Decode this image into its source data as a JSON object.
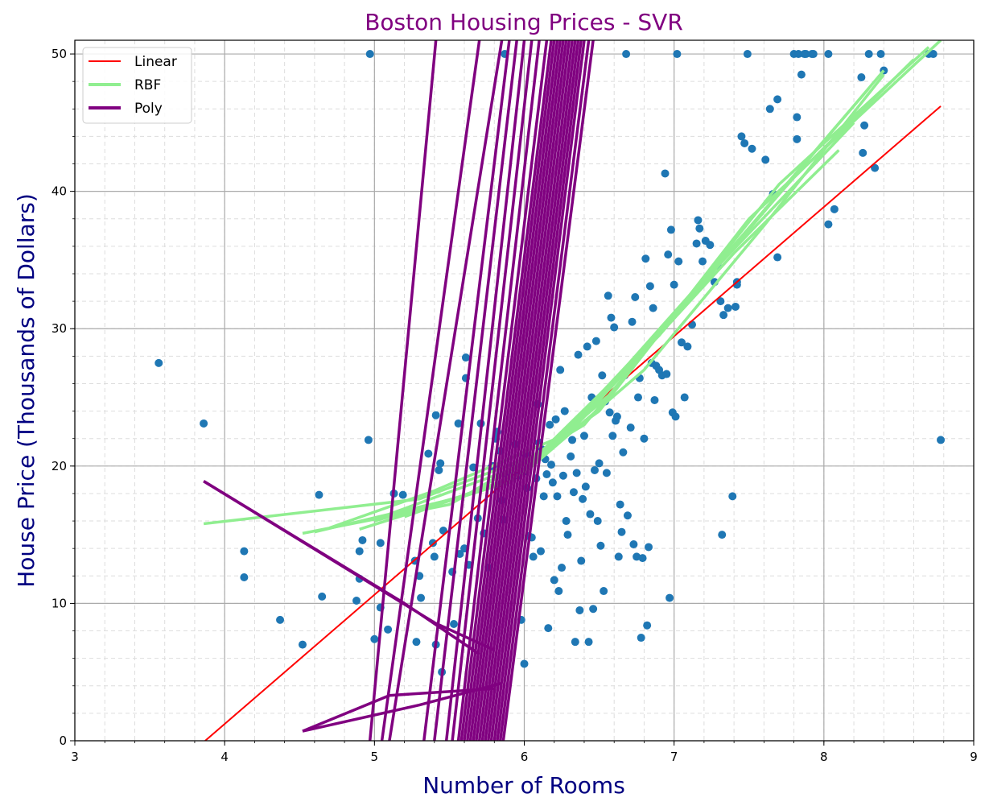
{
  "chart_data": {
    "type": "scatter",
    "title": "Boston Housing Prices - SVR",
    "xlabel": "Number of Rooms",
    "ylabel": "House Price (Thousands of Dollars)",
    "xlim": [
      3,
      9
    ],
    "ylim": [
      0,
      51
    ],
    "xticks": [
      3,
      4,
      5,
      6,
      7,
      8,
      9
    ],
    "yticks": [
      0,
      10,
      20,
      30,
      40,
      50
    ],
    "grid": true,
    "legend_position": "top-left",
    "colors": {
      "points": "#1f77b4",
      "linear": "#ff0000",
      "rbf": "#90ee90",
      "poly": "#800080",
      "title": "#800080",
      "axis_label": "#000080"
    },
    "legend": [
      {
        "label": "Linear",
        "color": "#ff0000"
      },
      {
        "label": "RBF",
        "color": "#90ee90"
      },
      {
        "label": "Poly",
        "color": "#800080"
      }
    ],
    "points": [
      [
        3.56,
        27.5
      ],
      [
        3.86,
        23.1
      ],
      [
        4.13,
        13.8
      ],
      [
        4.13,
        11.9
      ],
      [
        4.37,
        8.8
      ],
      [
        4.52,
        7.0
      ],
      [
        4.63,
        17.9
      ],
      [
        4.65,
        10.5
      ],
      [
        4.88,
        10.2
      ],
      [
        4.9,
        11.8
      ],
      [
        4.9,
        13.8
      ],
      [
        4.92,
        14.6
      ],
      [
        4.96,
        21.9
      ],
      [
        4.97,
        50.0
      ],
      [
        5.0,
        7.4
      ],
      [
        5.04,
        14.4
      ],
      [
        5.04,
        9.7
      ],
      [
        5.09,
        8.1
      ],
      [
        5.13,
        18.0
      ],
      [
        5.19,
        17.9
      ],
      [
        5.27,
        13.1
      ],
      [
        5.28,
        7.2
      ],
      [
        5.3,
        12.0
      ],
      [
        5.31,
        10.4
      ],
      [
        5.36,
        20.9
      ],
      [
        5.39,
        14.4
      ],
      [
        5.4,
        13.4
      ],
      [
        5.41,
        23.7
      ],
      [
        5.41,
        7.0
      ],
      [
        5.43,
        19.7
      ],
      [
        5.44,
        20.2
      ],
      [
        5.45,
        5.0
      ],
      [
        5.46,
        15.3
      ],
      [
        5.52,
        12.3
      ],
      [
        5.53,
        8.5
      ],
      [
        5.56,
        23.1
      ],
      [
        5.57,
        13.6
      ],
      [
        5.6,
        14.0
      ],
      [
        5.61,
        27.9
      ],
      [
        5.61,
        26.4
      ],
      [
        5.63,
        12.8
      ],
      [
        5.66,
        19.9
      ],
      [
        5.69,
        16.2
      ],
      [
        5.71,
        23.1
      ],
      [
        5.73,
        15.1
      ],
      [
        5.76,
        12.6
      ],
      [
        5.78,
        19.9
      ],
      [
        5.79,
        20.0
      ],
      [
        5.81,
        22.0
      ],
      [
        5.82,
        22.5
      ],
      [
        5.84,
        21.1
      ],
      [
        5.85,
        17.5
      ],
      [
        5.86,
        16.1
      ],
      [
        5.87,
        50.0
      ],
      [
        5.88,
        18.9
      ],
      [
        5.89,
        19.4
      ],
      [
        5.93,
        20.0
      ],
      [
        5.94,
        21.6
      ],
      [
        5.96,
        19.3
      ],
      [
        5.98,
        8.8
      ],
      [
        6.0,
        5.6
      ],
      [
        6.0,
        19.6
      ],
      [
        6.01,
        20.8
      ],
      [
        6.02,
        18.4
      ],
      [
        6.03,
        14.9
      ],
      [
        6.05,
        14.8
      ],
      [
        6.06,
        13.4
      ],
      [
        6.08,
        19.1
      ],
      [
        6.09,
        24.5
      ],
      [
        6.1,
        21.7
      ],
      [
        6.11,
        13.8
      ],
      [
        6.12,
        21.2
      ],
      [
        6.13,
        17.8
      ],
      [
        6.14,
        20.5
      ],
      [
        6.15,
        19.4
      ],
      [
        6.16,
        8.2
      ],
      [
        6.17,
        23.0
      ],
      [
        6.18,
        20.1
      ],
      [
        6.19,
        18.8
      ],
      [
        6.2,
        11.7
      ],
      [
        6.21,
        23.4
      ],
      [
        6.22,
        17.8
      ],
      [
        6.23,
        10.9
      ],
      [
        6.24,
        27.0
      ],
      [
        6.25,
        12.6
      ],
      [
        6.26,
        19.3
      ],
      [
        6.27,
        24.0
      ],
      [
        6.28,
        16.0
      ],
      [
        6.29,
        15.0
      ],
      [
        6.31,
        20.7
      ],
      [
        6.32,
        21.9
      ],
      [
        6.33,
        18.1
      ],
      [
        6.34,
        7.2
      ],
      [
        6.35,
        19.5
      ],
      [
        6.36,
        28.1
      ],
      [
        6.37,
        9.5
      ],
      [
        6.38,
        13.1
      ],
      [
        6.39,
        17.6
      ],
      [
        6.4,
        22.2
      ],
      [
        6.41,
        18.5
      ],
      [
        6.42,
        28.7
      ],
      [
        6.43,
        7.2
      ],
      [
        6.44,
        16.5
      ],
      [
        6.45,
        25.0
      ],
      [
        6.46,
        9.6
      ],
      [
        6.47,
        19.7
      ],
      [
        6.48,
        29.1
      ],
      [
        6.49,
        16.0
      ],
      [
        6.5,
        20.2
      ],
      [
        6.51,
        14.2
      ],
      [
        6.52,
        26.6
      ],
      [
        6.53,
        10.9
      ],
      [
        6.54,
        24.7
      ],
      [
        6.55,
        19.5
      ],
      [
        6.56,
        32.4
      ],
      [
        6.57,
        23.9
      ],
      [
        6.58,
        30.8
      ],
      [
        6.59,
        22.2
      ],
      [
        6.6,
        30.1
      ],
      [
        6.61,
        23.3
      ],
      [
        6.62,
        23.6
      ],
      [
        6.63,
        13.4
      ],
      [
        6.64,
        17.2
      ],
      [
        6.65,
        15.2
      ],
      [
        6.66,
        21.0
      ],
      [
        6.67,
        26.6
      ],
      [
        6.68,
        50.0
      ],
      [
        6.69,
        16.4
      ],
      [
        6.71,
        22.8
      ],
      [
        6.72,
        30.5
      ],
      [
        6.73,
        14.3
      ],
      [
        6.74,
        32.3
      ],
      [
        6.75,
        13.4
      ],
      [
        6.76,
        25.0
      ],
      [
        6.77,
        26.4
      ],
      [
        6.78,
        7.5
      ],
      [
        6.79,
        13.3
      ],
      [
        6.8,
        22.0
      ],
      [
        6.81,
        35.1
      ],
      [
        6.82,
        8.4
      ],
      [
        6.83,
        14.1
      ],
      [
        6.84,
        33.1
      ],
      [
        6.85,
        27.5
      ],
      [
        6.86,
        31.5
      ],
      [
        6.87,
        24.8
      ],
      [
        6.88,
        27.3
      ],
      [
        6.9,
        27.0
      ],
      [
        6.92,
        26.6
      ],
      [
        6.94,
        41.3
      ],
      [
        6.95,
        26.7
      ],
      [
        6.96,
        35.4
      ],
      [
        6.97,
        10.4
      ],
      [
        6.98,
        37.2
      ],
      [
        6.99,
        23.9
      ],
      [
        7.0,
        33.2
      ],
      [
        7.01,
        23.6
      ],
      [
        7.02,
        50.0
      ],
      [
        7.03,
        34.9
      ],
      [
        7.05,
        29.0
      ],
      [
        7.07,
        25.0
      ],
      [
        7.09,
        28.7
      ],
      [
        7.12,
        30.3
      ],
      [
        7.15,
        36.2
      ],
      [
        7.16,
        37.9
      ],
      [
        7.17,
        37.3
      ],
      [
        7.19,
        34.9
      ],
      [
        7.21,
        36.4
      ],
      [
        7.24,
        36.1
      ],
      [
        7.27,
        33.4
      ],
      [
        7.29,
        34.6
      ],
      [
        7.31,
        32.0
      ],
      [
        7.32,
        15.0
      ],
      [
        7.33,
        31.0
      ],
      [
        7.36,
        31.5
      ],
      [
        7.39,
        17.8
      ],
      [
        7.41,
        31.6
      ],
      [
        7.42,
        33.2
      ],
      [
        7.42,
        33.4
      ],
      [
        7.45,
        44.0
      ],
      [
        7.47,
        43.5
      ],
      [
        7.49,
        50.0
      ],
      [
        7.52,
        43.1
      ],
      [
        7.61,
        42.3
      ],
      [
        7.64,
        46.0
      ],
      [
        7.66,
        39.8
      ],
      [
        7.69,
        46.7
      ],
      [
        7.69,
        35.2
      ],
      [
        7.8,
        50.0
      ],
      [
        7.82,
        45.4
      ],
      [
        7.82,
        43.8
      ],
      [
        7.83,
        50.0
      ],
      [
        7.85,
        48.5
      ],
      [
        7.87,
        50.0
      ],
      [
        7.88,
        50.0
      ],
      [
        7.92,
        50.0
      ],
      [
        7.93,
        50.0
      ],
      [
        8.03,
        37.6
      ],
      [
        8.03,
        50.0
      ],
      [
        8.07,
        38.7
      ],
      [
        8.25,
        48.3
      ],
      [
        8.26,
        42.8
      ],
      [
        8.27,
        44.8
      ],
      [
        8.3,
        50.0
      ],
      [
        8.34,
        41.7
      ],
      [
        8.38,
        50.0
      ],
      [
        8.4,
        48.8
      ],
      [
        8.7,
        50.0
      ],
      [
        8.73,
        50.0
      ],
      [
        8.78,
        21.9
      ]
    ],
    "series": [
      {
        "name": "Linear",
        "x": [
          3.87,
          8.78
        ],
        "y": [
          0.0,
          46.2
        ]
      },
      {
        "name": "RBF",
        "paths": [
          [
            [
              3.86,
              15.8
            ],
            [
              5.3,
              17.6
            ],
            [
              6.1,
              20.9
            ],
            [
              6.9,
              29.5
            ],
            [
              8.4,
              48.8
            ]
          ],
          [
            [
              4.52,
              15.1
            ],
            [
              5.5,
              17.2
            ],
            [
              6.2,
              21.4
            ],
            [
              7.0,
              31.0
            ],
            [
              8.3,
              47.5
            ]
          ],
          [
            [
              4.9,
              15.4
            ],
            [
              5.8,
              18.5
            ],
            [
              6.5,
              24.0
            ],
            [
              7.5,
              38.0
            ],
            [
              8.78,
              51.0
            ]
          ],
          [
            [
              5.0,
              16.0
            ],
            [
              5.9,
              18.8
            ],
            [
              6.6,
              25.5
            ],
            [
              7.7,
              40.5
            ],
            [
              8.7,
              50.5
            ]
          ],
          [
            [
              4.6,
              15.2
            ],
            [
              5.6,
              17.8
            ],
            [
              6.4,
              23.0
            ],
            [
              7.2,
              33.5
            ],
            [
              8.2,
              45.0
            ]
          ],
          [
            [
              5.2,
              16.3
            ],
            [
              6.0,
              19.5
            ],
            [
              6.8,
              27.0
            ],
            [
              7.6,
              37.5
            ],
            [
              8.4,
              48.5
            ]
          ],
          [
            [
              4.7,
              15.5
            ],
            [
              5.4,
              18.2
            ],
            [
              6.3,
              22.4
            ],
            [
              7.4,
              35.5
            ],
            [
              8.1,
              43.0
            ]
          ],
          [
            [
              5.1,
              16.5
            ],
            [
              6.1,
              20.5
            ],
            [
              6.7,
              27.5
            ],
            [
              7.8,
              41.0
            ],
            [
              8.6,
              49.6
            ]
          ]
        ]
      },
      {
        "name": "Poly",
        "paths": [
          [
            [
              3.86,
              18.9
            ],
            [
              5.2,
              10.0
            ],
            [
              5.7,
              6.3
            ]
          ],
          [
            [
              3.86,
              18.9
            ],
            [
              5.4,
              8.6
            ],
            [
              5.8,
              6.6
            ]
          ],
          [
            [
              4.52,
              0.7
            ],
            [
              5.3,
              2.6
            ],
            [
              5.85,
              4.2
            ]
          ],
          [
            [
              4.52,
              0.7
            ],
            [
              5.1,
              3.3
            ],
            [
              5.8,
              3.8
            ]
          ],
          [
            [
              4.97,
              0.0
            ],
            [
              5.41,
              51.0
            ]
          ],
          [
            [
              5.05,
              0.0
            ],
            [
              5.7,
              51.0
            ]
          ],
          [
            [
              5.1,
              0.0
            ],
            [
              5.85,
              51.0
            ]
          ],
          [
            [
              5.33,
              0.0
            ],
            [
              5.9,
              51.0
            ]
          ],
          [
            [
              5.4,
              0.0
            ],
            [
              5.95,
              51.0
            ]
          ],
          [
            [
              5.48,
              0.0
            ],
            [
              6.0,
              51.0
            ]
          ],
          [
            [
              5.52,
              0.0
            ],
            [
              6.05,
              51.0
            ]
          ],
          [
            [
              5.56,
              0.0
            ],
            [
              6.1,
              51.0
            ]
          ],
          [
            [
              5.58,
              0.0
            ],
            [
              6.15,
              51.0
            ]
          ],
          [
            [
              5.6,
              0.0
            ],
            [
              6.18,
              51.0
            ]
          ],
          [
            [
              5.62,
              0.0
            ],
            [
              6.2,
              51.0
            ]
          ],
          [
            [
              5.64,
              0.0
            ],
            [
              6.22,
              51.0
            ]
          ],
          [
            [
              5.66,
              0.0
            ],
            [
              6.24,
              51.0
            ]
          ],
          [
            [
              5.68,
              0.0
            ],
            [
              6.26,
              51.0
            ]
          ],
          [
            [
              5.7,
              0.0
            ],
            [
              6.28,
              51.0
            ]
          ],
          [
            [
              5.72,
              0.0
            ],
            [
              6.3,
              51.0
            ]
          ],
          [
            [
              5.74,
              0.0
            ],
            [
              6.32,
              51.0
            ]
          ],
          [
            [
              5.76,
              0.0
            ],
            [
              6.34,
              51.0
            ]
          ],
          [
            [
              5.78,
              0.0
            ],
            [
              6.36,
              51.0
            ]
          ],
          [
            [
              5.8,
              0.0
            ],
            [
              6.38,
              51.0
            ]
          ],
          [
            [
              5.82,
              0.0
            ],
            [
              6.4,
              51.0
            ]
          ],
          [
            [
              5.84,
              0.0
            ],
            [
              6.43,
              51.0
            ]
          ],
          [
            [
              5.86,
              0.0
            ],
            [
              6.46,
              51.0
            ]
          ]
        ]
      }
    ]
  }
}
